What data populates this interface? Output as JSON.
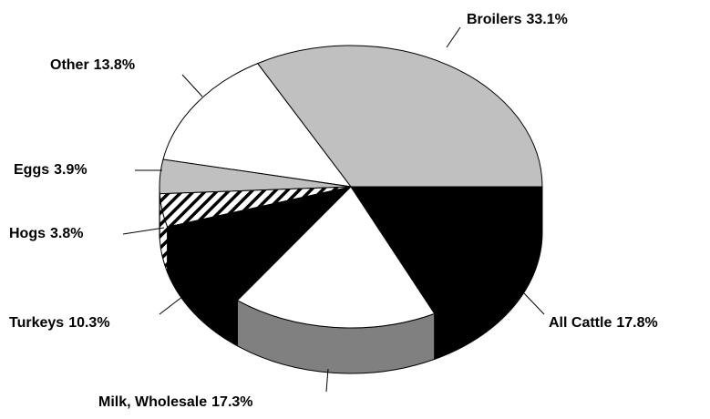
{
  "chart_data": {
    "type": "pie3d",
    "categories": [
      "Broilers",
      "Other",
      "Eggs",
      "Hogs",
      "Turkeys",
      "Milk, Wholesale",
      "All Cattle"
    ],
    "values": [
      33.1,
      13.8,
      3.9,
      3.8,
      10.3,
      17.3,
      17.8
    ],
    "value_labels": [
      "33.1%",
      "13.8%",
      "3.9%",
      "3.8%",
      "10.3%",
      "17.3%",
      "17.8%"
    ],
    "colors": [
      "#c0c0c0",
      "#ffffff",
      "#c0c0c0",
      "hatch",
      "#000000",
      "#ffffff",
      "#000000"
    ],
    "side_colors": [
      "#c0c0c0",
      "#ffffff",
      "#c0c0c0",
      "hatch",
      "#000000",
      "#808080",
      "#000000"
    ]
  }
}
